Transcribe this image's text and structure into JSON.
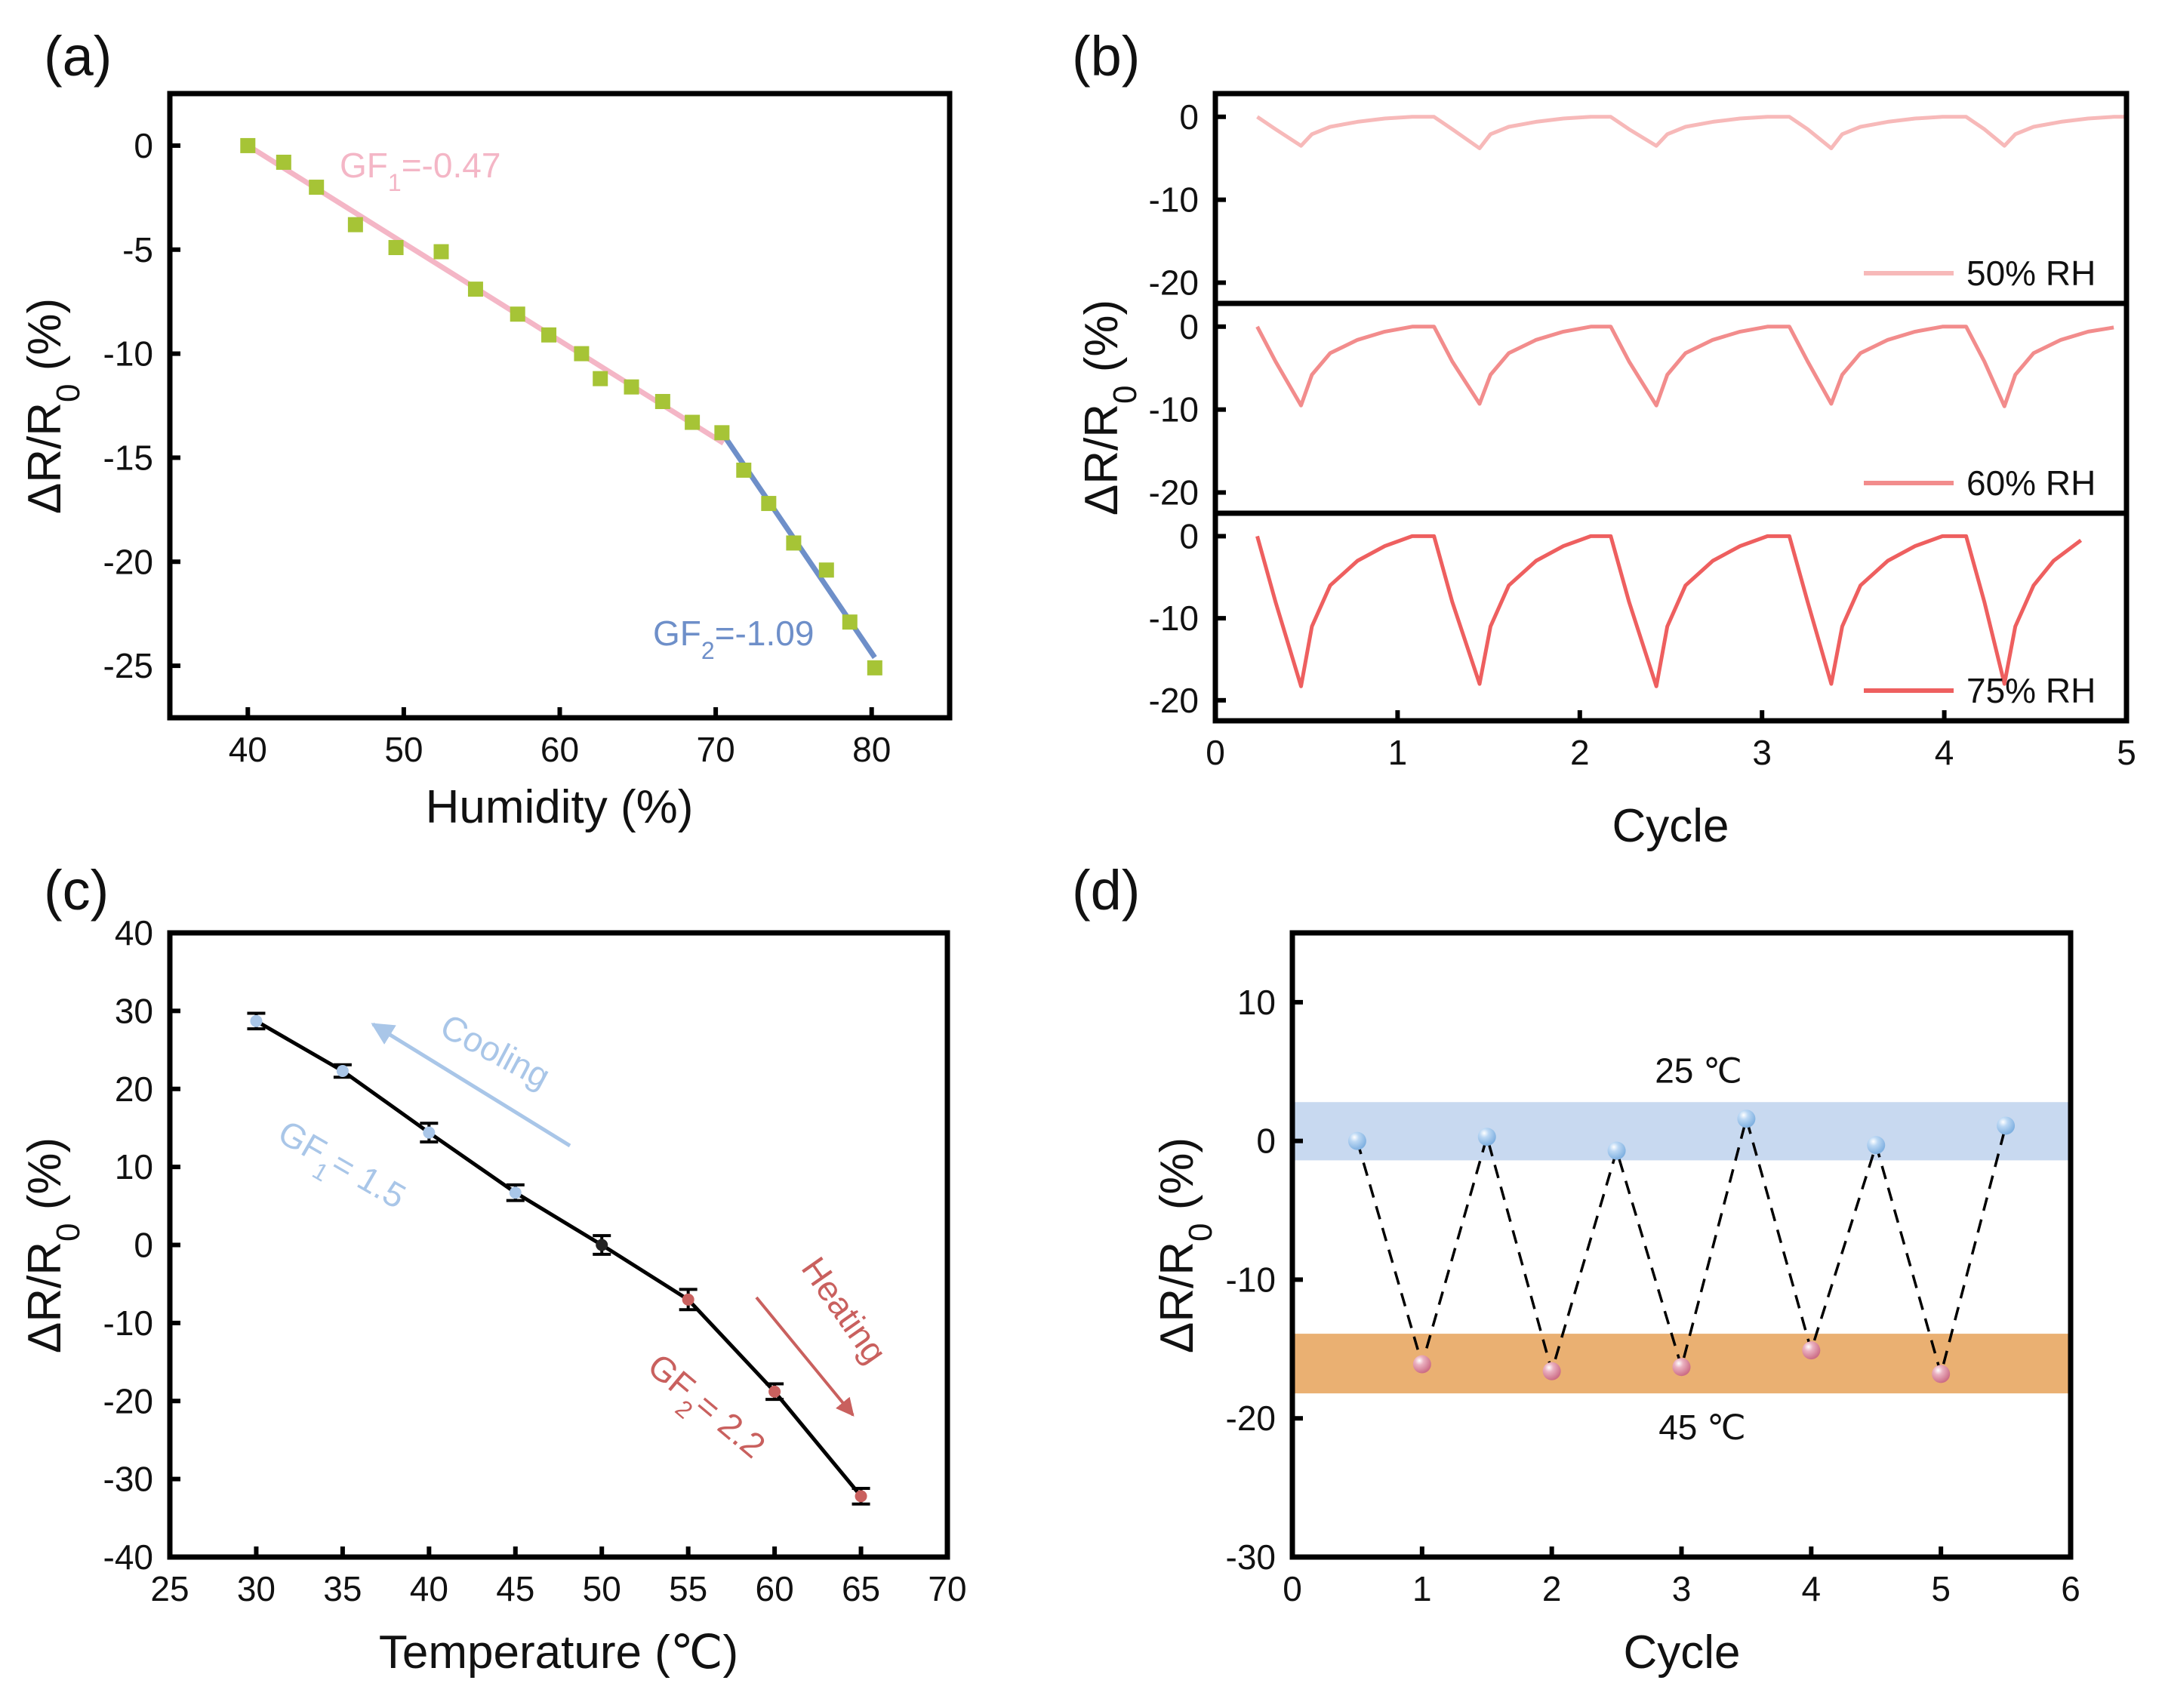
{
  "chart_data": [
    {
      "panel": "(a)",
      "type": "scatter",
      "xlabel": "Humidity (%)",
      "ylabel": {
        "main": "ΔR/R",
        "sub": "0",
        "tail": " (%)"
      },
      "xlim": [
        35,
        85
      ],
      "ylim": [
        -27.5,
        2.5
      ],
      "xticks": [
        40,
        50,
        60,
        70,
        80
      ],
      "yticks": [
        0,
        -5,
        -10,
        -15,
        -20,
        -25
      ],
      "marker_color": "#a6c436",
      "x": [
        40,
        42.3,
        44.4,
        46.9,
        49.5,
        52.4,
        54.6,
        57.3,
        59.3,
        61.4,
        62.6,
        64.6,
        66.6,
        68.5,
        70.4,
        71.8,
        73.4,
        75,
        77.1,
        78.6,
        80.2
      ],
      "y": [
        0,
        -0.8,
        -2,
        -3.8,
        -4.9,
        -5.1,
        -6.9,
        -8.1,
        -9.1,
        -10,
        -11.2,
        -11.6,
        -12.3,
        -13.3,
        -13.8,
        -15.6,
        -17.2,
        -19.1,
        -20.4,
        -22.9,
        -25.1
      ],
      "fits": [
        {
          "label": {
            "main": "GF",
            "sub": "1",
            "tail": "=-0.47"
          },
          "color": "#f4b6c6",
          "x": [
            40,
            70.5
          ],
          "y": [
            0,
            -14.3
          ]
        },
        {
          "label": {
            "main": "GF",
            "sub": "2",
            "tail": "=-1.09"
          },
          "color": "#6e8fc9",
          "x": [
            70.5,
            80.2
          ],
          "y": [
            -13.9,
            -24.6
          ]
        }
      ]
    },
    {
      "panel": "(b)",
      "type": "line",
      "xlabel": "Cycle",
      "ylabel": {
        "main": "ΔR/R",
        "sub": "0",
        "tail": " (%)"
      },
      "xlim": [
        0,
        5
      ],
      "ylim": [
        -22.5,
        2.8
      ],
      "xticks": [
        0,
        1,
        2,
        3,
        4,
        5
      ],
      "yticks": [
        0,
        -10,
        -20
      ],
      "series": [
        {
          "name": "50% RH",
          "color": "#f7b9b9",
          "x": [
            0.23,
            0.33,
            0.47,
            0.53,
            0.63,
            0.78,
            0.93,
            1.08,
            1.2,
            1.3,
            1.45,
            1.51,
            1.61,
            1.76,
            1.91,
            2.06,
            2.17,
            2.27,
            2.42,
            2.48,
            2.58,
            2.73,
            2.88,
            3.03,
            3.15,
            3.25,
            3.38,
            3.44,
            3.54,
            3.69,
            3.84,
            3.99,
            4.12,
            4.22,
            4.33,
            4.39,
            4.49,
            4.64,
            4.79,
            4.93,
            5.0
          ],
          "y": [
            0,
            -1.5,
            -3.5,
            -2.1,
            -1.2,
            -0.6,
            -0.2,
            0,
            0,
            -1.5,
            -3.8,
            -2.1,
            -1.2,
            -0.6,
            -0.2,
            0,
            0,
            -1.5,
            -3.5,
            -2.1,
            -1.2,
            -0.6,
            -0.2,
            0,
            0,
            -1.5,
            -3.8,
            -2.1,
            -1.2,
            -0.6,
            -0.2,
            0,
            0,
            -1.5,
            -3.5,
            -2.1,
            -1.2,
            -0.6,
            -0.2,
            0,
            0
          ]
        },
        {
          "name": "60% RH",
          "color": "#f28c8c",
          "x": [
            0.23,
            0.33,
            0.47,
            0.53,
            0.63,
            0.78,
            0.93,
            1.08,
            1.2,
            1.3,
            1.45,
            1.51,
            1.61,
            1.76,
            1.91,
            2.06,
            2.17,
            2.27,
            2.42,
            2.48,
            2.58,
            2.73,
            2.88,
            3.03,
            3.15,
            3.25,
            3.38,
            3.44,
            3.54,
            3.69,
            3.84,
            3.99,
            4.12,
            4.22,
            4.33,
            4.39,
            4.49,
            4.64,
            4.79,
            4.93
          ],
          "y": [
            0,
            -4.2,
            -9.5,
            -5.8,
            -3.2,
            -1.6,
            -0.6,
            0,
            0,
            -4.2,
            -9.3,
            -5.8,
            -3.2,
            -1.6,
            -0.6,
            0,
            0,
            -4.2,
            -9.5,
            -5.8,
            -3.2,
            -1.6,
            -0.6,
            0,
            0,
            -4.2,
            -9.3,
            -5.8,
            -3.2,
            -1.6,
            -0.6,
            0,
            0,
            -4.2,
            -9.6,
            -5.8,
            -3.2,
            -1.6,
            -0.6,
            -0.1
          ]
        },
        {
          "name": "75% RH",
          "color": "#ee5f5f",
          "x": [
            0.23,
            0.33,
            0.47,
            0.53,
            0.63,
            0.78,
            0.93,
            1.08,
            1.2,
            1.3,
            1.45,
            1.51,
            1.61,
            1.76,
            1.91,
            2.06,
            2.17,
            2.27,
            2.42,
            2.48,
            2.58,
            2.73,
            2.88,
            3.03,
            3.15,
            3.25,
            3.38,
            3.44,
            3.54,
            3.69,
            3.84,
            3.99,
            4.12,
            4.22,
            4.33,
            4.39,
            4.49,
            4.6,
            4.75
          ],
          "y": [
            0,
            -8,
            -18.3,
            -11,
            -6,
            -3,
            -1.2,
            0,
            0,
            -8,
            -18,
            -11,
            -6,
            -3,
            -1.2,
            0,
            0,
            -8,
            -18.3,
            -11,
            -6,
            -3,
            -1.2,
            0,
            0,
            -8,
            -18,
            -11,
            -6,
            -3,
            -1.2,
            0,
            0,
            -8,
            -18,
            -11,
            -6,
            -3,
            -0.5
          ]
        }
      ]
    },
    {
      "panel": "(c)",
      "type": "line",
      "xlabel": "Temperature (℃)",
      "ylabel": {
        "main": "ΔR/R",
        "sub": "0",
        "tail": " (%)"
      },
      "xlim": [
        25,
        70
      ],
      "ylim": [
        -40,
        40
      ],
      "xticks": [
        25,
        30,
        35,
        40,
        45,
        50,
        55,
        60,
        65,
        70
      ],
      "yticks": [
        40,
        30,
        20,
        10,
        0,
        -10,
        -20,
        -30,
        -40
      ],
      "x": [
        30,
        35,
        40,
        45,
        50,
        55,
        60,
        65
      ],
      "y": [
        28.7,
        22.3,
        14.4,
        6.7,
        0,
        -7,
        -18.8,
        -32.2
      ],
      "yerr": [
        1.0,
        0.8,
        1.2,
        1.0,
        1.2,
        1.3,
        1.0,
        1.0
      ],
      "marker_colors": [
        "#a9c6e8",
        "#a9c6e8",
        "#a9c6e8",
        "#a9c6e8",
        "#222222",
        "#c9605e",
        "#c9605e",
        "#c9605e"
      ],
      "annotations": {
        "cooling": {
          "text": "Cooling",
          "color": "#a9c6e8"
        },
        "gf1": {
          "main": "GF",
          "sub": "1",
          "tail": "= 1.5",
          "color": "#a9c6e8"
        },
        "heating": {
          "text": "Heating",
          "color": "#c9605e"
        },
        "gf2": {
          "main": "GF",
          "sub": "2",
          "tail": "= 2.2",
          "color": "#c9605e"
        }
      }
    },
    {
      "panel": "(d)",
      "type": "scatter",
      "xlabel": "Cycle",
      "ylabel": {
        "main": "ΔR/R",
        "sub": "0",
        "tail": " (%)"
      },
      "xlim": [
        0,
        6
      ],
      "ylim": [
        -30,
        15
      ],
      "xticks": [
        0,
        1,
        2,
        3,
        4,
        5,
        6
      ],
      "yticks": [
        10,
        0,
        -10,
        -20,
        -30
      ],
      "x": [
        0.5,
        1,
        1.5,
        2,
        2.5,
        3,
        3.5,
        4,
        4.5,
        5,
        5.5
      ],
      "y": [
        0,
        -16.1,
        0.3,
        -16.6,
        -0.7,
        -16.3,
        1.6,
        -15.1,
        -0.3,
        -16.8,
        1.1
      ],
      "bands": [
        {
          "label": "25 ℃",
          "range": [
            -1.4,
            2.8
          ],
          "color": "#c8d9f0",
          "point_color": "#9cc3ea"
        },
        {
          "label": "45 ℃",
          "range": [
            -18.2,
            -13.9
          ],
          "color": "#eab072",
          "point_color": "#df8a9e"
        }
      ]
    }
  ]
}
